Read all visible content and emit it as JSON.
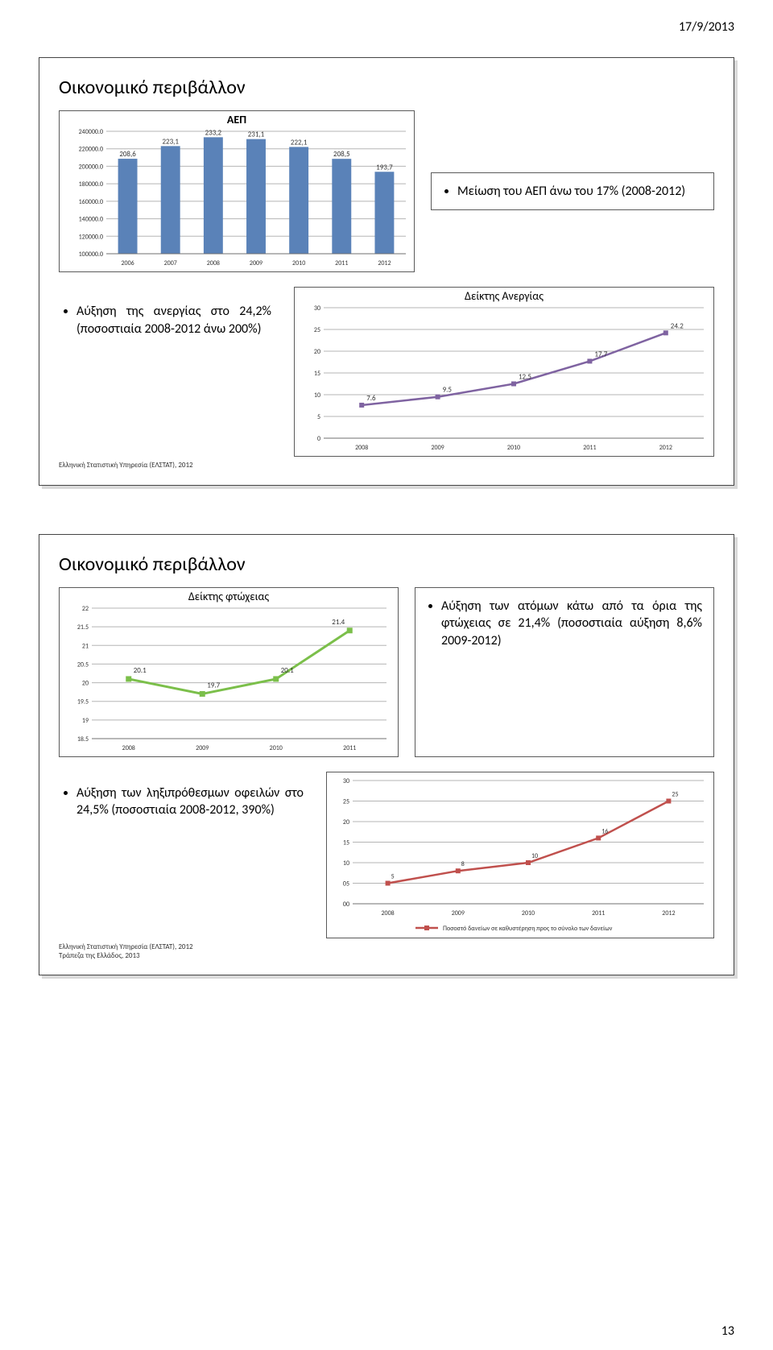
{
  "date_header": "17/9/2013",
  "page_number": "13",
  "slide1": {
    "title": "Οικονομικό περιβάλλον",
    "gdp_chart": {
      "title": "ΑΕΠ",
      "categories": [
        "2006",
        "2007",
        "2008",
        "2009",
        "2010",
        "2011",
        "2012"
      ],
      "values": [
        208.6,
        223.1,
        233.2,
        231.1,
        222.1,
        208.5,
        193.7
      ],
      "labels": [
        "208,6",
        "223,1",
        "233,2",
        "231,1",
        "222,1",
        "208,5",
        "193,7"
      ],
      "ylim": [
        100000,
        240000
      ],
      "ytick_step": 20000,
      "ytick_labels": [
        "100000.0",
        "120000.0",
        "140000.0",
        "160000.0",
        "180000.0",
        "200000.0",
        "220000.0",
        "240000.0"
      ],
      "bar_color": "#5a82b8",
      "grid_color": "#b5b5b5",
      "axis_color": "#6f6f6f",
      "label_fontsize": 9,
      "tick_fontsize": 8
    },
    "gdp_bullet": "Μείωση του ΑΕΠ άνω του 17% (2008-2012)",
    "unemployment_bullet": "Αύξηση της ανεργίας στο 24,2% (ποσοστιαία 2008-2012 άνω 200%)",
    "unemployment_chart": {
      "title": "Δείκτης Ανεργίας",
      "categories": [
        "2008",
        "2009",
        "2010",
        "2011",
        "2012"
      ],
      "values": [
        7.6,
        9.5,
        12.5,
        17.7,
        24.2
      ],
      "labels": [
        "7.6",
        "9.5",
        "12.5",
        "17.7",
        "24.2"
      ],
      "ylim": [
        0,
        30
      ],
      "ytick_step": 5,
      "ytick_labels": [
        "0",
        "5",
        "10",
        "15",
        "20",
        "25",
        "30"
      ],
      "line_color": "#7f63a1",
      "grid_color": "#b5b5b5",
      "axis_color": "#6f6f6f",
      "label_fontsize": 9,
      "tick_fontsize": 8
    },
    "source": "Ελληνική Στατιστική Υπηρεσία (ΕΛΣΤΑΤ), 2012"
  },
  "slide2": {
    "title": "Οικονομικό περιβάλλον",
    "poverty_chart": {
      "title": "Δείκτης φτώχειας",
      "categories": [
        "2008",
        "2009",
        "2010",
        "2011"
      ],
      "values": [
        20.1,
        19.7,
        20.1,
        21.4
      ],
      "labels": [
        "20.1",
        "19.7",
        "20.1",
        "21.4"
      ],
      "ylim": [
        18.5,
        22
      ],
      "ytick_step": 0.5,
      "ytick_labels": [
        "18.5",
        "19",
        "19.5",
        "20",
        "20.5",
        "21",
        "21.5",
        "22"
      ],
      "line_color": "#7bbf4a",
      "grid_color": "#b5b5b5",
      "axis_color": "#6f6f6f",
      "label_fontsize": 9,
      "tick_fontsize": 8
    },
    "poverty_bullet": "Αύξηση των ατόμων κάτω από τα όρια της φτώχειας σε 21,4% (ποσοστιαία αύξηση 8,6% 2009-2012)",
    "loans_bullet": "Αύξηση των ληξιπρόθεσμων οφειλών στο 24,5% (ποσοστιαία 2008-2012, 390%)",
    "loans_chart": {
      "legend": "Ποσοστό δανείων σε καθυστέρηση προς το σύνολο των δανείων",
      "categories": [
        "2008",
        "2009",
        "2010",
        "2011",
        "2012"
      ],
      "values": [
        5,
        8,
        10,
        16,
        25
      ],
      "labels": [
        "5",
        "8",
        "10",
        "16",
        "25"
      ],
      "ylim": [
        0,
        30
      ],
      "ytick_step": 5,
      "ytick_labels": [
        "00",
        "05",
        "10",
        "15",
        "20",
        "25",
        "30"
      ],
      "line_color": "#c0504d",
      "grid_color": "#b5b5b5",
      "axis_color": "#6f6f6f",
      "label_fontsize": 8,
      "tick_fontsize": 8
    },
    "source1": "Ελληνική Στατιστική Υπηρεσία (ΕΛΣΤΑΤ), 2012",
    "source2": "Τράπεζα της Ελλάδος, 2013"
  }
}
